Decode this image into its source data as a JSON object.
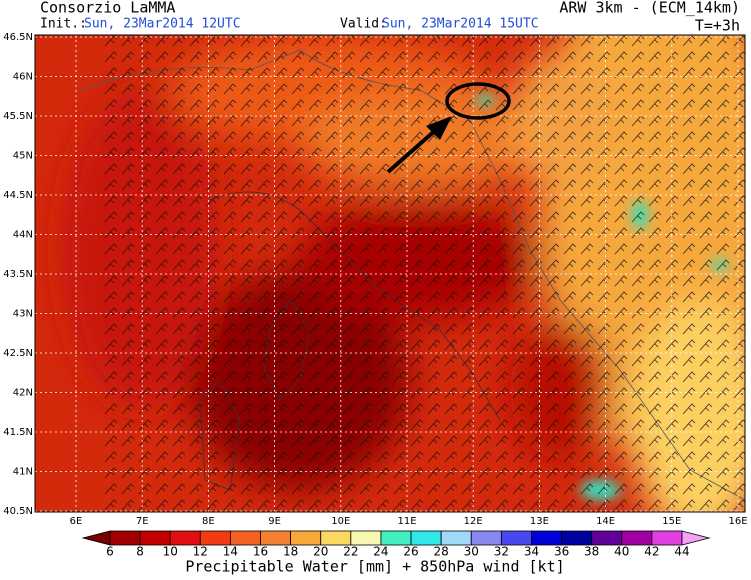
{
  "header": {
    "left_title": "Consorzio LaMMA",
    "init_label": "Init.:",
    "init_time": "Sun, 23Mar2014 12UTC",
    "right_title": "ARW 3km - (ECM_14km)",
    "valid_label": "Valid:",
    "valid_time": "Sun, 23Mar2014 15UTC",
    "lead": "T=+3h"
  },
  "map": {
    "lat_labels": [
      "46.5N",
      "46N",
      "45.5N",
      "45N",
      "44.5N",
      "44N",
      "43.5N",
      "43N",
      "42.5N",
      "42N",
      "41.5N",
      "41N",
      "40.5N"
    ],
    "lon_labels": [
      "6E",
      "7E",
      "8E",
      "9E",
      "10E",
      "11E",
      "12E",
      "13E",
      "14E",
      "15E",
      "16E"
    ]
  },
  "colorbar": {
    "labels": [
      "6",
      "8",
      "10",
      "12",
      "14",
      "16",
      "18",
      "20",
      "22",
      "24",
      "26",
      "28",
      "30",
      "32",
      "34",
      "36",
      "38",
      "40",
      "42",
      "44"
    ],
    "colors": [
      "#7a0000",
      "#a00000",
      "#c20000",
      "#e01010",
      "#f03c10",
      "#f46020",
      "#f48030",
      "#f8a838",
      "#fcd860",
      "#f8f8b0",
      "#40f0c0",
      "#30e8e8",
      "#a0d8f8",
      "#8888f0",
      "#4848f0",
      "#0000d8",
      "#0000a0",
      "#600098",
      "#a000a0",
      "#e040e0",
      "#f4a0f4"
    ],
    "title": "Precipitable Water [mm] + 850hPa wind [kt]"
  }
}
